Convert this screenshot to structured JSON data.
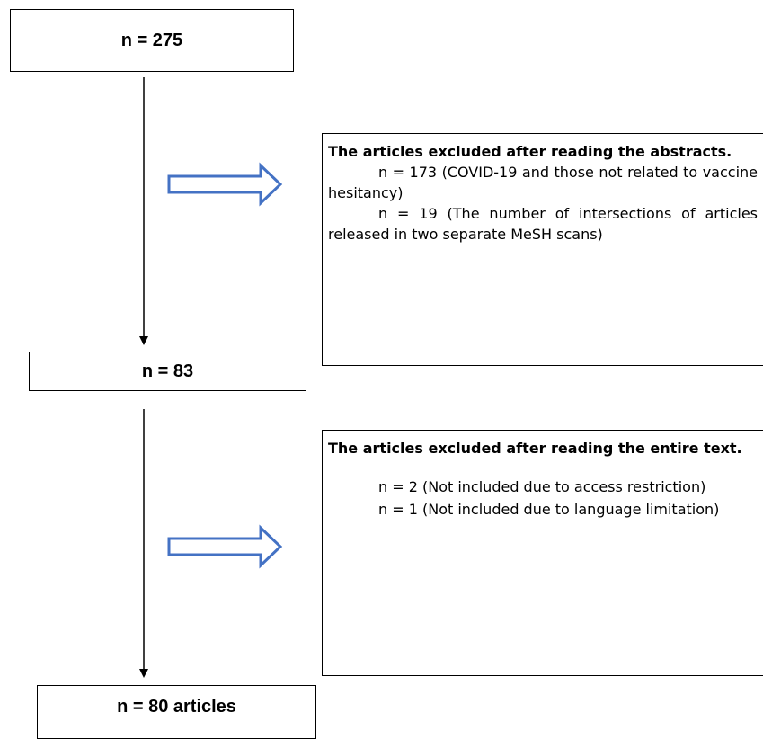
{
  "flow": {
    "stage1": {
      "label": "n = 275"
    },
    "stage2": {
      "label": "n = 83"
    },
    "stage3": {
      "label": "n = 80 articles"
    }
  },
  "exclusions": {
    "abstracts": {
      "title": "The articles excluded after reading the abstracts.",
      "lines": [
        "n = 173 (COVID-19 and those not related to vaccine hesitancy)",
        "n = 19  (The number of intersections of articles released in two separate MeSH scans)"
      ]
    },
    "fulltext": {
      "title": "The articles excluded after reading the entire text.",
      "lines": [
        "n = 2 (Not included due to access restriction)",
        "n = 1 (Not included due to language limitation)"
      ]
    }
  },
  "colors": {
    "box_border": "#000000",
    "arrow_outline": "#4472c4",
    "arrow_fill": "#ffffff",
    "flow_line": "#000000"
  }
}
